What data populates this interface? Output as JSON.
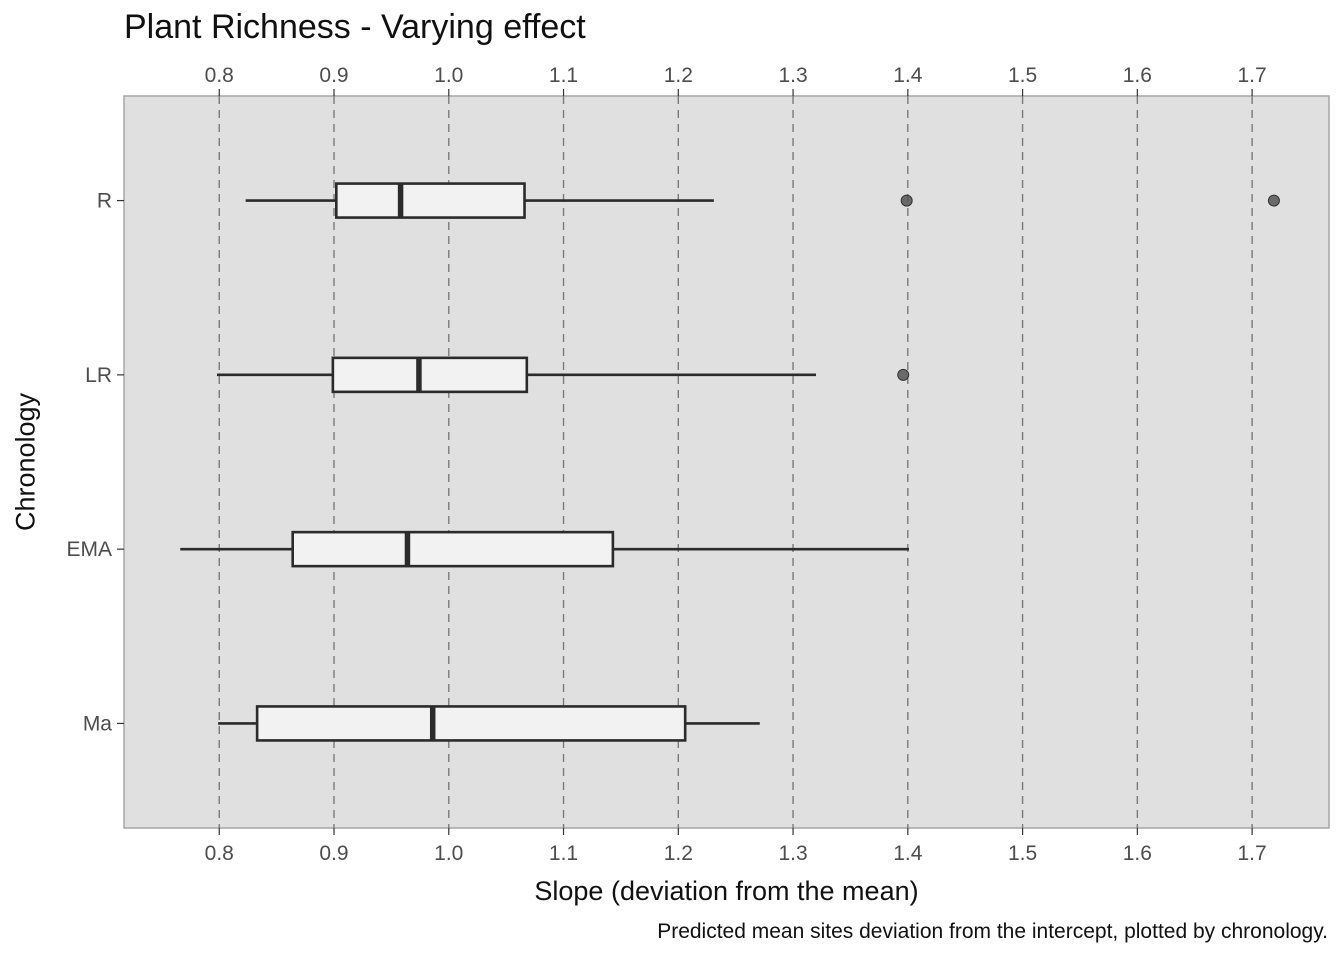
{
  "chart_data": {
    "type": "boxplot",
    "orientation": "horizontal",
    "title": "Plant Richness - Varying effect",
    "xlabel": "Slope (deviation from the mean)",
    "ylabel": "Chronology",
    "caption": "Predicted mean sites deviation from the intercept, plotted by chronology.",
    "xlim": [
      0.717,
      1.767
    ],
    "xticks": [
      0.8,
      0.9,
      1.0,
      1.1,
      1.2,
      1.3,
      1.4,
      1.5,
      1.6,
      1.7
    ],
    "xtick_labels": [
      "0.8",
      "0.9",
      "1.0",
      "1.1",
      "1.2",
      "1.3",
      "1.4",
      "1.5",
      "1.6",
      "1.7"
    ],
    "x_axis_labels_top_and_bottom": true,
    "grid": "dashed vertical major lines",
    "categories": [
      "R",
      "LR",
      "EMA",
      "Ma"
    ],
    "boxes": [
      {
        "category": "R",
        "whisker_low": 0.823,
        "q1": 0.902,
        "median": 0.958,
        "q3": 1.066,
        "whisker_high": 1.231,
        "outliers": [
          1.399,
          1.719
        ]
      },
      {
        "category": "LR",
        "whisker_low": 0.798,
        "q1": 0.899,
        "median": 0.974,
        "q3": 1.068,
        "whisker_high": 1.32,
        "outliers": [
          1.396
        ]
      },
      {
        "category": "EMA",
        "whisker_low": 0.766,
        "q1": 0.864,
        "median": 0.964,
        "q3": 1.143,
        "whisker_high": 1.401,
        "outliers": []
      },
      {
        "category": "Ma",
        "whisker_low": 0.799,
        "q1": 0.833,
        "median": 0.986,
        "q3": 1.206,
        "whisker_high": 1.271,
        "outliers": []
      }
    ],
    "colors": {
      "panel_background": "#e0e0e0",
      "panel_border": "#a6a6a6",
      "grid": "#7a7a7a",
      "box_fill": "#f2f2f2",
      "box_line": "#2b2b2b",
      "outlier": "#555555",
      "tick_text": "#4d4d4d"
    }
  }
}
